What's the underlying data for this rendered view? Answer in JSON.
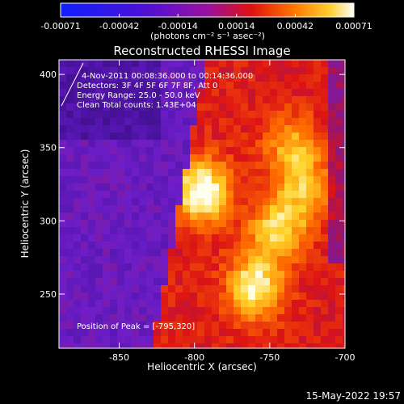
{
  "colorbar": {
    "tick_labels": [
      "-0.00071",
      "-0.00042",
      "-0.00014",
      "0.00014",
      "0.00042",
      "0.00071"
    ],
    "unit_label": "(photons cm⁻² s⁻¹ asec⁻²)",
    "range": [
      -0.00071,
      0.00071
    ]
  },
  "chart_data": {
    "type": "heatmap",
    "title": "Reconstructed RHESSI Image",
    "xlabel": "Heliocentric X (arcsec)",
    "ylabel": "Heliocentric Y (arcsec)",
    "xlim": [
      -890,
      -700
    ],
    "ylim": [
      213,
      410
    ],
    "x_ticks": [
      -850,
      -800,
      -750,
      -700
    ],
    "y_ticks": [
      250,
      300,
      350,
      400
    ],
    "info_lines": [
      "4-Nov-2011 00:08:36.000 to 00:14:36.000",
      "Detectors: 3F 4F 5F 6F 7F 8F, Att 0",
      "Energy Range: 25.0 - 50.0 keV",
      "Clean     Total counts: 1.43E+04"
    ],
    "peak_label": "Position of Peak = [-795,320]",
    "peak": [
      -795,
      320
    ],
    "colormap": "rhessi_blue_purple_red_yellow",
    "sources": [
      {
        "x": -795,
        "y": 320,
        "peak": 1.0
      },
      {
        "x": -760,
        "y": 255,
        "peak": 0.85
      },
      {
        "x": -745,
        "y": 295,
        "peak": 0.7
      },
      {
        "x": -735,
        "y": 350,
        "peak": 0.55
      },
      {
        "x": -725,
        "y": 320,
        "peak": 0.5
      }
    ]
  },
  "footer": {
    "timestamp": "15-May-2022 19:57"
  }
}
